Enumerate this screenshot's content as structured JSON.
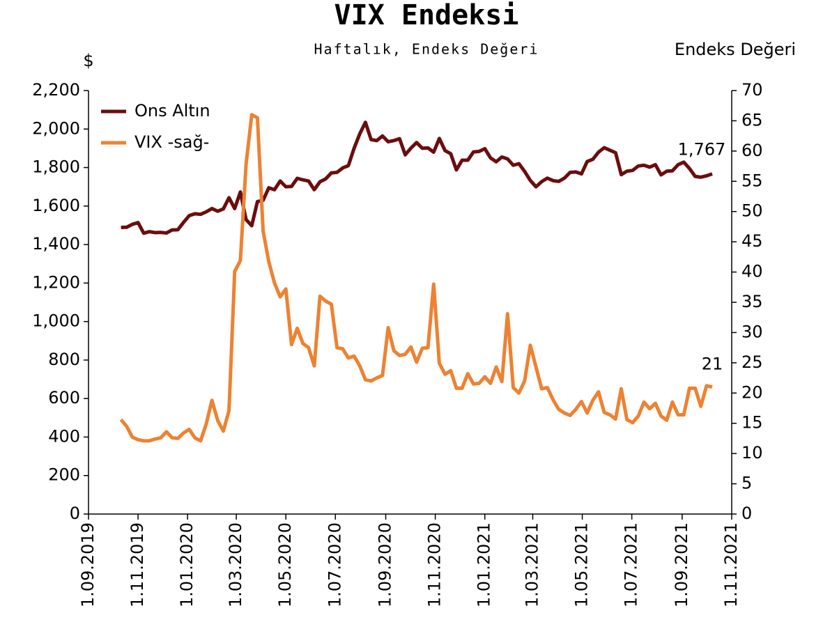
{
  "chart_data": {
    "type": "line",
    "title": "VIX Endeksi",
    "subtitle": "Haftalık, Endeks Değeri",
    "y_label": "$",
    "y2_label": "Endeks Değeri",
    "x": [
      "11.10.2019",
      "18.10.2019",
      "25.10.2019",
      "1.11.2019",
      "8.11.2019",
      "15.11.2019",
      "22.11.2019",
      "29.11.2019",
      "6.12.2019",
      "13.12.2019",
      "20.12.2019",
      "27.12.2019",
      "3.01.2020",
      "10.01.2020",
      "17.01.2020",
      "24.01.2020",
      "31.01.2020",
      "7.02.2020",
      "14.02.2020",
      "21.02.2020",
      "28.02.2020",
      "6.03.2020",
      "13.03.2020",
      "20.03.2020",
      "27.03.2020",
      "3.04.2020",
      "10.04.2020",
      "17.04.2020",
      "24.04.2020",
      "1.05.2020",
      "8.05.2020",
      "15.05.2020",
      "22.05.2020",
      "29.05.2020",
      "5.06.2020",
      "12.06.2020",
      "19.06.2020",
      "26.06.2020",
      "3.07.2020",
      "10.07.2020",
      "17.07.2020",
      "24.07.2020",
      "31.07.2020",
      "7.08.2020",
      "14.08.2020",
      "21.08.2020",
      "28.08.2020",
      "4.09.2020",
      "11.09.2020",
      "18.09.2020",
      "25.09.2020",
      "2.10.2020",
      "9.10.2020",
      "16.10.2020",
      "23.10.2020",
      "30.10.2020",
      "6.11.2020",
      "13.11.2020",
      "20.11.2020",
      "27.11.2020",
      "4.12.2020",
      "11.12.2020",
      "18.12.2020",
      "25.12.2020",
      "1.01.2021",
      "8.01.2021",
      "15.01.2021",
      "22.01.2021",
      "29.01.2021",
      "5.02.2021",
      "12.02.2021",
      "19.02.2021",
      "26.02.2021",
      "5.03.2021",
      "12.03.2021",
      "19.03.2021",
      "26.03.2021",
      "2.04.2021",
      "9.04.2021",
      "16.04.2021",
      "23.04.2021",
      "30.04.2021",
      "7.05.2021",
      "14.05.2021",
      "21.05.2021",
      "28.05.2021",
      "4.06.2021",
      "11.06.2021",
      "18.06.2021",
      "25.06.2021",
      "2.07.2021",
      "9.07.2021",
      "16.07.2021",
      "23.07.2021",
      "30.07.2021",
      "6.08.2021",
      "13.08.2021",
      "20.08.2021",
      "27.08.2021",
      "3.09.2021",
      "10.09.2021",
      "17.09.2021",
      "24.09.2021",
      "1.10.2021",
      "8.10.2021"
    ],
    "series": [
      {
        "name": "Ons Altın",
        "color": "#6b0d0d",
        "values": [
          1489,
          1490,
          1505,
          1514,
          1459,
          1467,
          1462,
          1463,
          1460,
          1476,
          1477,
          1515,
          1550,
          1560,
          1557,
          1570,
          1587,
          1573,
          1585,
          1643,
          1587,
          1673,
          1530,
          1498,
          1623,
          1630,
          1695,
          1685,
          1730,
          1700,
          1702,
          1744,
          1736,
          1730,
          1685,
          1726,
          1741,
          1772,
          1775,
          1798,
          1810,
          1900,
          1975,
          2035,
          1945,
          1940,
          1964,
          1934,
          1940,
          1950,
          1866,
          1901,
          1930,
          1900,
          1902,
          1880,
          1951,
          1888,
          1872,
          1788,
          1838,
          1838,
          1881,
          1884,
          1898,
          1850,
          1830,
          1855,
          1845,
          1812,
          1820,
          1780,
          1733,
          1700,
          1727,
          1745,
          1732,
          1728,
          1745,
          1775,
          1777,
          1767,
          1831,
          1843,
          1880,
          1903,
          1890,
          1877,
          1763,
          1781,
          1785,
          1808,
          1812,
          1802,
          1815,
          1762,
          1781,
          1783,
          1815,
          1828,
          1795,
          1754,
          1750,
          1757,
          1767
        ],
        "value_labels": [
          null,
          null,
          null,
          null,
          null,
          null,
          null,
          null,
          null,
          null,
          null,
          null,
          null,
          null,
          null,
          null,
          null,
          null,
          null,
          null,
          null,
          null,
          null,
          null,
          null,
          null,
          null,
          null,
          null,
          null,
          null,
          null,
          null,
          null,
          null,
          null,
          null,
          null,
          null,
          null,
          null,
          null,
          null,
          null,
          null,
          null,
          null,
          null,
          null,
          null,
          null,
          null,
          null,
          null,
          null,
          null,
          null,
          null,
          null,
          null,
          null,
          null,
          null,
          null,
          null,
          null,
          null,
          null,
          null,
          null,
          null,
          null,
          null,
          null,
          null,
          null,
          null,
          null,
          null,
          null,
          null,
          null,
          null,
          null,
          null,
          null,
          null,
          null,
          null,
          null,
          null,
          null,
          null,
          null,
          null,
          null,
          null,
          null,
          null,
          null,
          null,
          null,
          null,
          null,
          "1,767"
        ]
      },
      {
        "name": "VIX -sağ-",
        "color": "#ed8232",
        "axis": "y2",
        "last_value_label": true,
        "values": [
          15.6,
          14.5,
          12.7,
          12.3,
          12.1,
          12.1,
          12.4,
          12.6,
          13.6,
          12.6,
          12.5,
          13.4,
          14.0,
          12.6,
          12.1,
          14.9,
          18.8,
          15.5,
          13.7,
          17.1,
          40.1,
          41.9,
          57.8,
          66.0,
          65.5,
          46.8,
          41.7,
          38.2,
          35.9,
          37.2,
          28.0,
          30.7,
          28.2,
          27.5,
          24.5,
          36.0,
          35.2,
          34.7,
          27.5,
          27.3,
          25.8,
          26.1,
          24.5,
          22.2,
          22.0,
          22.5,
          22.9,
          30.8,
          27.0,
          26.2,
          26.4,
          27.6,
          25.1,
          27.4,
          27.5,
          38.0,
          24.9,
          23.1,
          23.7,
          20.8,
          20.8,
          23.2,
          21.5,
          21.6,
          22.7,
          21.6,
          24.3,
          21.9,
          33.1,
          20.9,
          20.0,
          22.0,
          27.9,
          24.3,
          20.7,
          20.9,
          18.9,
          17.3,
          16.7,
          16.3,
          17.3,
          18.6,
          16.7,
          18.8,
          20.2,
          16.8,
          16.4,
          15.7,
          20.7,
          15.6,
          15.1,
          16.2,
          18.5,
          17.4,
          18.3,
          16.2,
          15.5,
          18.5,
          16.4,
          16.4,
          20.8,
          20.8,
          17.8,
          21.2,
          21
        ]
      }
    ],
    "xlim": [
      "1.09.2019",
      "1.11.2021"
    ],
    "xticks": [
      "1.09.2019",
      "1.11.2019",
      "1.01.2020",
      "1.03.2020",
      "1.05.2020",
      "1.07.2020",
      "1.09.2020",
      "1.11.2020",
      "1.01.2021",
      "1.03.2021",
      "1.05.2021",
      "1.07.2021",
      "1.09.2021",
      "1.11.2021"
    ],
    "ylim": [
      0,
      2200
    ],
    "yticks": [
      0,
      200,
      400,
      600,
      800,
      {
        "value": 1000,
        "label": "1,000"
      },
      {
        "value": 1200,
        "label": "1,200"
      },
      {
        "value": 1400,
        "label": "1,400"
      },
      {
        "value": 1600,
        "label": "1,600"
      },
      {
        "value": 1800,
        "label": "1,800"
      },
      {
        "value": 2000,
        "label": "2,000"
      },
      {
        "value": 2200,
        "label": "2,200"
      }
    ],
    "y2lim": [
      0,
      70
    ],
    "y2ticks": [
      0,
      5,
      10,
      15,
      20,
      25,
      30,
      35,
      40,
      45,
      50,
      55,
      60,
      65,
      70
    ],
    "legend": "upper left",
    "grid": false
  }
}
